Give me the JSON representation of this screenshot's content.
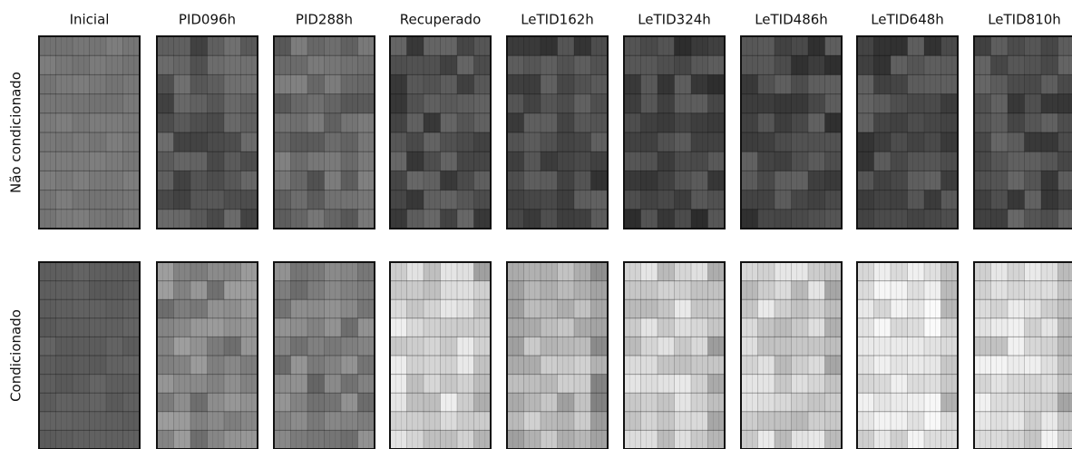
{
  "columns": [
    "Inicial",
    "PID096h",
    "PID288h",
    "Recuperado",
    "LeTID162h",
    "LeTID324h",
    "LeTID486h",
    "LeTID648h",
    "LeTID810h"
  ],
  "rows": [
    "Não condicionado",
    "Condicionado"
  ]
}
